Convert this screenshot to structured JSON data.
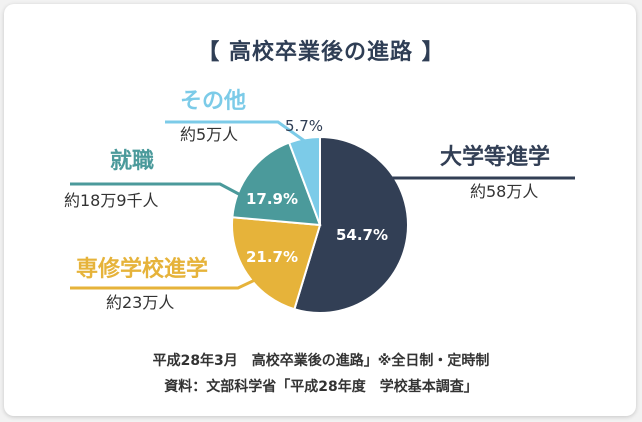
{
  "chart_data": {
    "type": "pie",
    "title": "【 高校卒業後の進路 】",
    "slices": [
      {
        "label": "大学等進学",
        "amount": "約58万人",
        "percent": 54.7,
        "percent_label": "54.7%",
        "color": "#323f55"
      },
      {
        "label": "専修学校進学",
        "amount": "約23万人",
        "percent": 21.7,
        "percent_label": "21.7%",
        "color": "#e6b33a"
      },
      {
        "label": "就職",
        "amount": "約18万9千人",
        "percent": 17.9,
        "percent_label": "17.9%",
        "color": "#4b9a9b"
      },
      {
        "label": "その他",
        "amount": "約5万人",
        "percent": 5.7,
        "percent_label": "5.7%",
        "color": "#7ccbe8"
      }
    ],
    "start": "12 o'clock, clockwise"
  },
  "notes": {
    "line1": "平成28年3月　高校卒業後の進路」※全日制・定時制",
    "line2": "資料：文部科学省「平成28年度　学校基本調査」"
  }
}
